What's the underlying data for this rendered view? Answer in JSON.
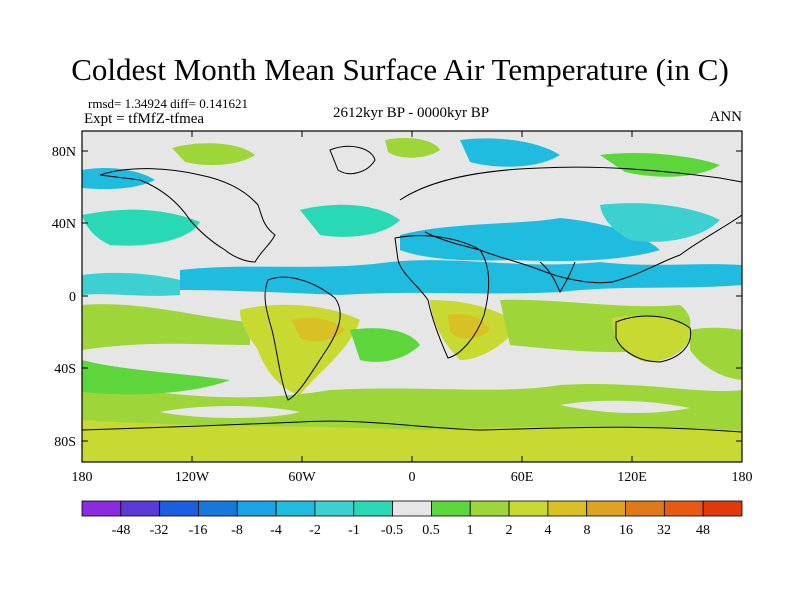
{
  "title": "Coldest Month Mean Surface Air Temperature (in C)",
  "stats": "rmsd= 1.34924 diff= 0.141621",
  "experiment": "Expt = tfMfZ-tfmea",
  "period": "2612kyr BP - 0000kyr BP",
  "season": "ANN",
  "lat_ticks": [
    "80N",
    "40N",
    "0",
    "40S",
    "80S"
  ],
  "lon_ticks": [
    "180",
    "120W",
    "60W",
    "0",
    "60E",
    "120E",
    "180"
  ],
  "colorbar": {
    "labels": [
      "-48",
      "-32",
      "-16",
      "-8",
      "-4",
      "-2",
      "-1",
      "-0.5",
      "0.5",
      "1",
      "2",
      "4",
      "8",
      "16",
      "32",
      "48"
    ],
    "colors": [
      "#8a2be2",
      "#5b39d6",
      "#1b5fe0",
      "#1778dc",
      "#1ba3e6",
      "#20bce0",
      "#3cd0d0",
      "#29d9b5",
      "#e6e6e6",
      "#5dd63c",
      "#9ed63a",
      "#c8d932",
      "#d8c025",
      "#dca421",
      "#e07a18",
      "#e85a12",
      "#e03a0c"
    ]
  },
  "colors": {
    "neutral": "#e6e6e6",
    "warm_1": "#5dd63c",
    "warm_2": "#9ed63a",
    "warm_4": "#c8d932",
    "warm_8": "#d8c025",
    "cool_05": "#29d9b5",
    "cool_1": "#3cd0d0",
    "cool_2": "#20bce0",
    "coast": "#000000"
  }
}
